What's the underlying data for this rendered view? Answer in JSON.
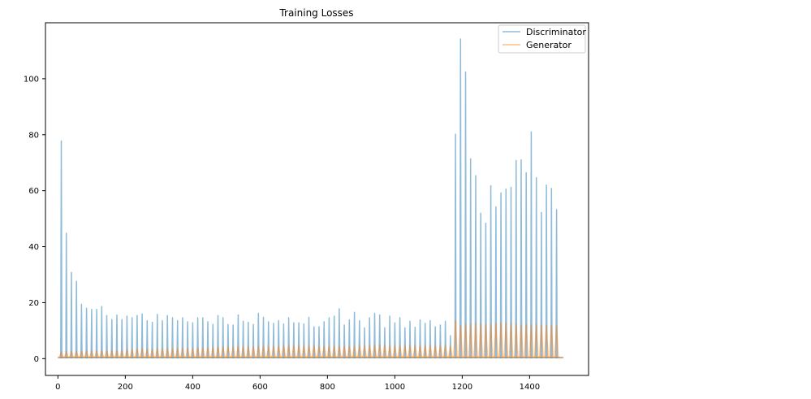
{
  "chart_data": {
    "type": "line",
    "title": "Training Losses",
    "xlabel": "",
    "ylabel": "",
    "xlim": [
      -37,
      1575
    ],
    "ylim": [
      -6,
      120
    ],
    "xticks": [
      0,
      200,
      400,
      600,
      800,
      1000,
      1200,
      1400
    ],
    "yticks": [
      0,
      20,
      40,
      60,
      80,
      100
    ],
    "grid": false,
    "legend_position": "top-right",
    "spike_x": [
      10,
      25,
      40,
      55,
      70,
      85,
      100,
      115,
      130,
      145,
      160,
      175,
      190,
      205,
      220,
      235,
      250,
      265,
      280,
      295,
      310,
      325,
      340,
      355,
      370,
      385,
      400,
      415,
      430,
      445,
      460,
      475,
      490,
      505,
      520,
      535,
      550,
      565,
      580,
      595,
      610,
      625,
      640,
      655,
      670,
      685,
      700,
      715,
      730,
      745,
      760,
      775,
      790,
      805,
      820,
      835,
      850,
      865,
      880,
      895,
      910,
      925,
      940,
      955,
      970,
      985,
      1000,
      1015,
      1030,
      1045,
      1060,
      1075,
      1090,
      1105,
      1120,
      1135,
      1150,
      1165,
      1180,
      1195,
      1210,
      1225,
      1240,
      1255,
      1270,
      1285,
      1300,
      1315,
      1330,
      1345,
      1360,
      1375,
      1390,
      1405,
      1420,
      1435,
      1450,
      1465,
      1480
    ],
    "series": [
      {
        "name": "Discriminator",
        "color": "#1f77b4",
        "values": [
          77.8,
          44.8,
          30.8,
          27.6,
          19.4,
          18.0,
          17.6,
          17.6,
          18.6,
          15.4,
          14.0,
          15.6,
          14.0,
          15.2,
          14.6,
          15.4,
          16.0,
          13.6,
          13.0,
          15.8,
          13.6,
          15.4,
          14.6,
          13.6,
          14.6,
          13.2,
          12.8,
          14.6,
          14.6,
          13.2,
          12.2,
          15.4,
          14.6,
          12.2,
          12.0,
          15.6,
          13.4,
          13.0,
          12.2,
          16.2,
          14.8,
          13.2,
          12.6,
          13.6,
          12.4,
          14.6,
          12.8,
          12.8,
          12.4,
          14.8,
          11.4,
          11.4,
          13.2,
          14.6,
          15.2,
          17.8,
          12.0,
          13.8,
          16.6,
          13.6,
          11.0,
          14.6,
          16.2,
          15.6,
          11.0,
          15.2,
          12.8,
          14.6,
          11.0,
          13.4,
          11.2,
          13.8,
          12.6,
          13.6,
          11.4,
          12.0,
          13.4,
          8.2,
          80.2,
          114.2,
          102.4,
          71.4,
          65.4,
          52.0,
          48.4,
          61.8,
          54.2,
          59.2,
          60.6,
          61.2,
          70.8,
          71.0,
          66.4,
          81.0,
          64.6,
          52.2,
          62.0,
          60.8,
          53.2
        ]
      },
      {
        "name": "Generator",
        "color": "#ff7f0e",
        "values": [
          2.4,
          2.4,
          2.6,
          2.6,
          2.6,
          2.8,
          2.8,
          2.6,
          2.8,
          2.8,
          2.8,
          2.8,
          2.8,
          3.2,
          3.2,
          3.4,
          3.6,
          3.4,
          3.4,
          3.6,
          3.6,
          3.6,
          3.6,
          3.6,
          3.6,
          3.6,
          3.6,
          3.8,
          3.8,
          3.8,
          4.0,
          4.2,
          4.2,
          4.2,
          4.0,
          4.2,
          4.2,
          4.2,
          4.2,
          4.2,
          4.4,
          4.2,
          4.4,
          4.4,
          4.6,
          4.6,
          4.6,
          4.6,
          4.6,
          4.6,
          4.6,
          4.4,
          4.4,
          4.4,
          4.4,
          4.4,
          4.4,
          4.4,
          4.4,
          4.6,
          4.6,
          4.6,
          4.8,
          4.8,
          4.8,
          4.6,
          4.6,
          4.6,
          4.6,
          4.6,
          4.6,
          4.6,
          4.6,
          4.6,
          4.6,
          4.6,
          4.6,
          4.4,
          13.6,
          11.8,
          12.4,
          12.2,
          12.8,
          12.4,
          12.4,
          12.2,
          12.4,
          12.6,
          12.8,
          12.6,
          12.2,
          12.0,
          12.2,
          12.0,
          12.2,
          12.0,
          11.8,
          12.0,
          11.8
        ]
      }
    ]
  }
}
